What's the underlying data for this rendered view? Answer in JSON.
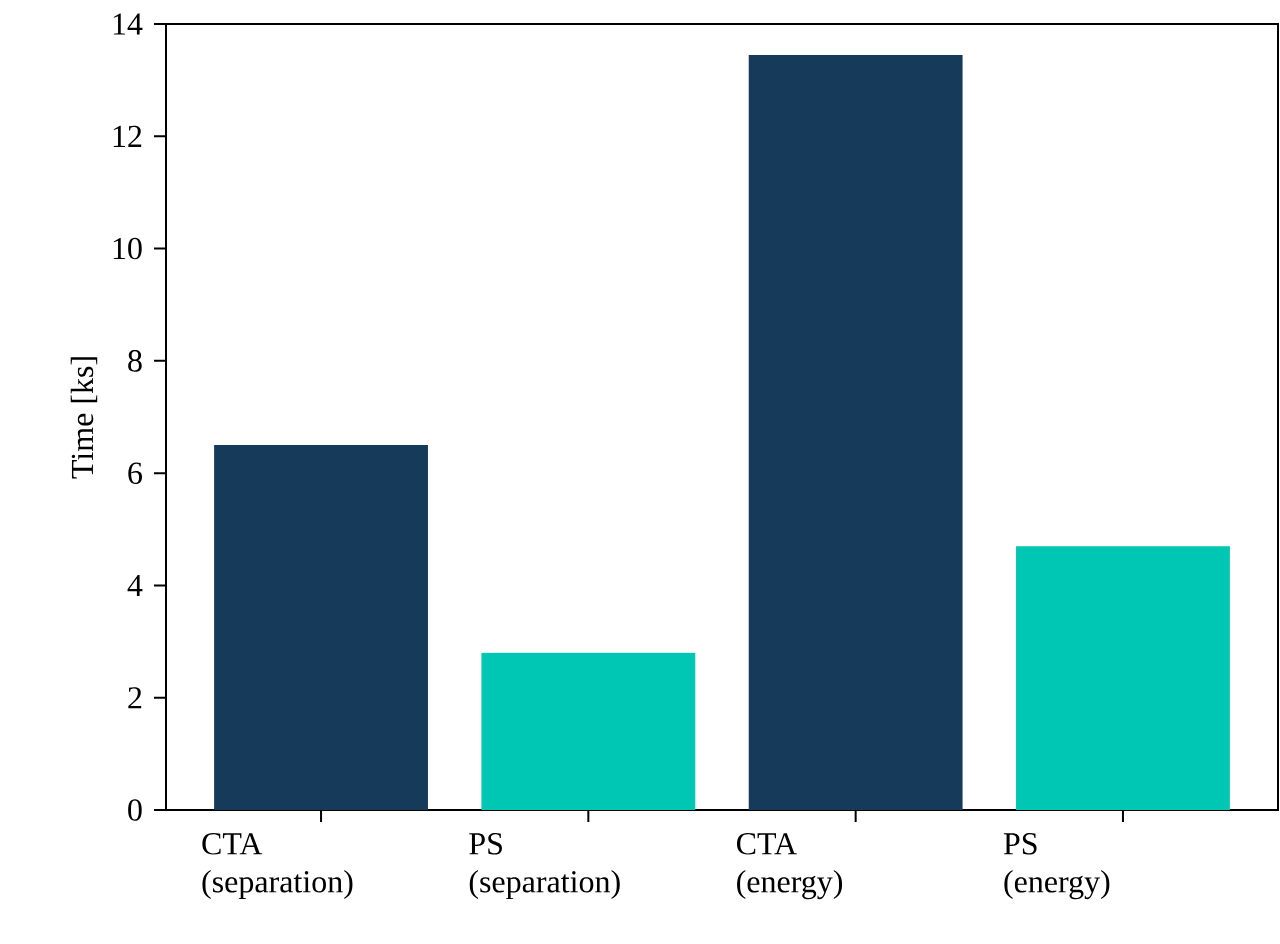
{
  "chart_data": {
    "type": "bar",
    "categories": [
      "CTA (separation)",
      "PS (separation)",
      "CTA (energy)",
      "PS (energy)"
    ],
    "values": [
      6.5,
      2.8,
      13.45,
      4.7
    ],
    "colors": [
      "#163a59",
      "#00c6b4",
      "#163a59",
      "#00c6b4"
    ],
    "ylabel": "Time [ks]",
    "ylim": [
      0,
      14
    ],
    "yticks": [
      0,
      2,
      4,
      6,
      8,
      10,
      12,
      14
    ],
    "grid": false
  }
}
